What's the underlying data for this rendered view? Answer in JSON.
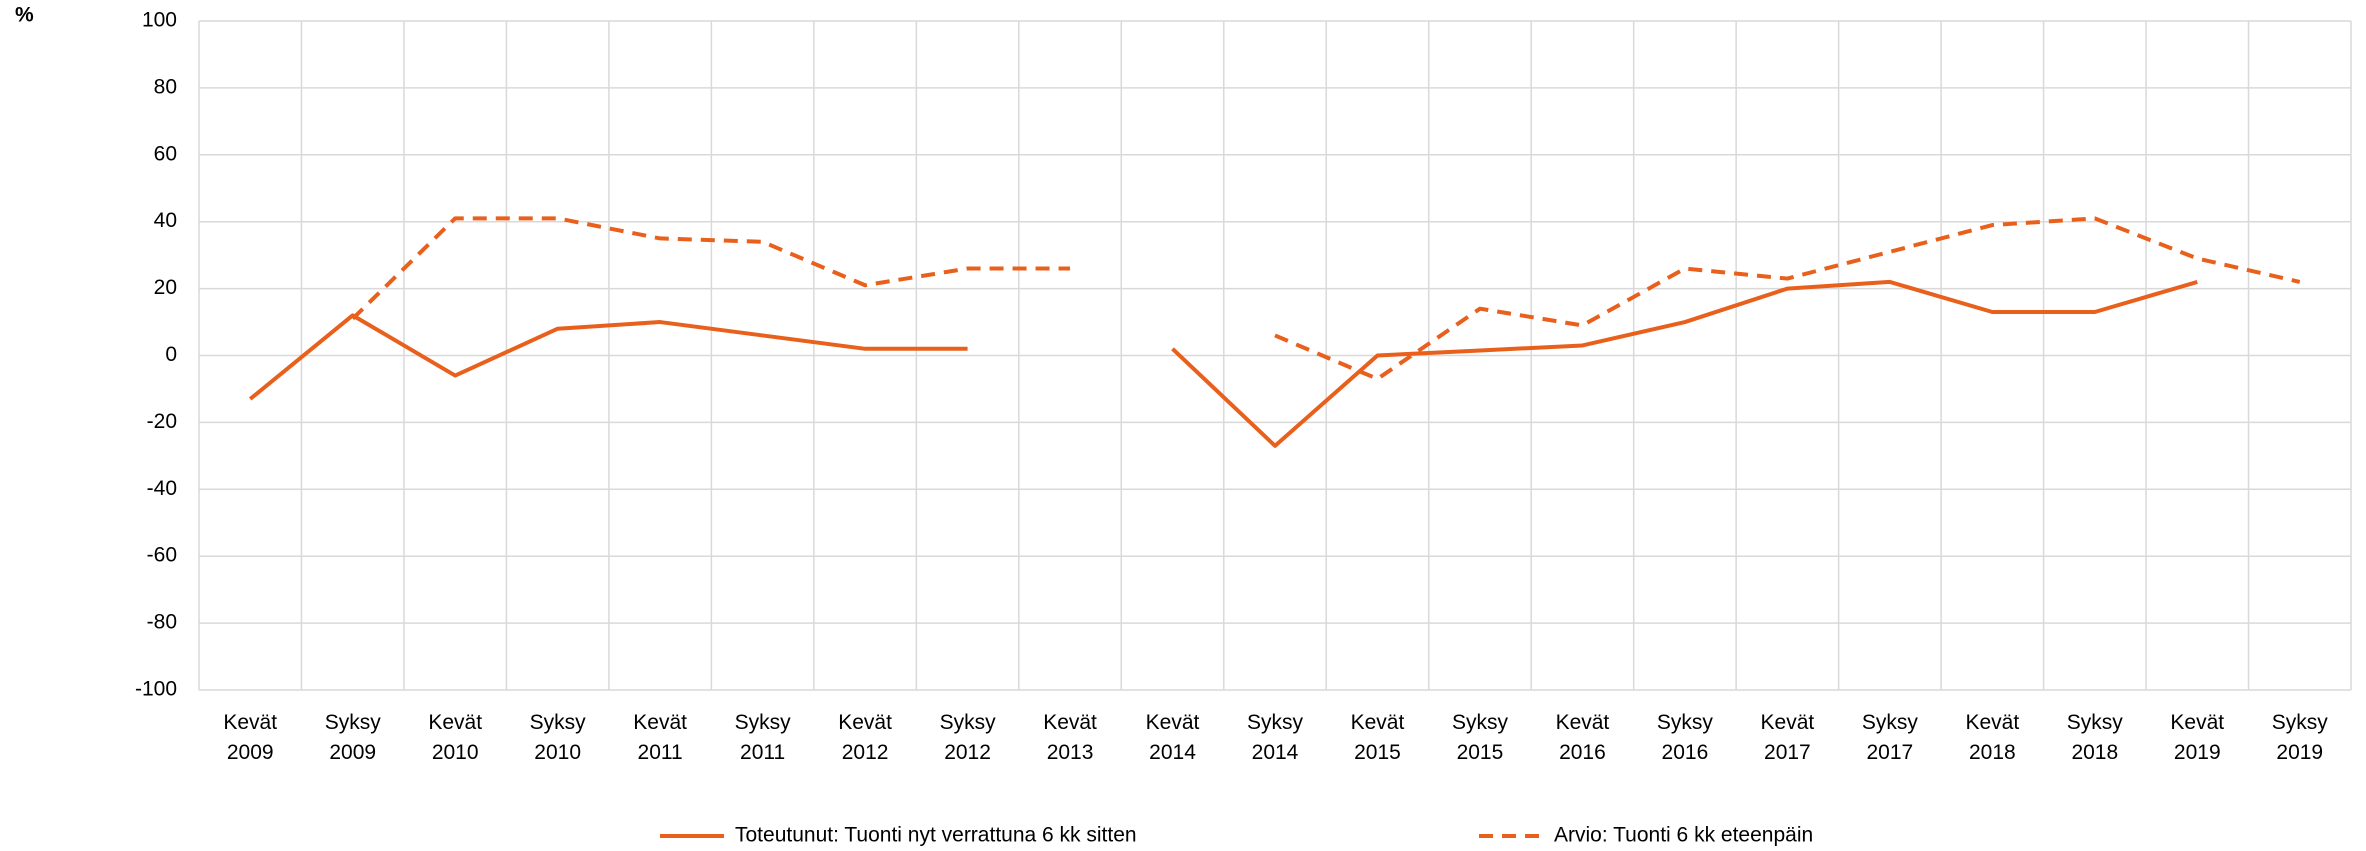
{
  "chart_data": {
    "type": "line",
    "y_label": "%",
    "categories": [
      "Kevät 2009",
      "Syksy 2009",
      "Kevät 2010",
      "Syksy 2010",
      "Kevät 2011",
      "Syksy 2011",
      "Kevät 2012",
      "Syksy 2012",
      "Kevät 2013",
      "Kevät 2014",
      "Syksy 2014",
      "Kevät 2015",
      "Syksy 2015",
      "Kevät 2016",
      "Syksy 2016",
      "Kevät 2017",
      "Syksy 2017",
      "Kevät 2018",
      "Syksy 2018",
      "Kevät 2019",
      "Syksy 2019"
    ],
    "series": [
      {
        "name": "Toteutunut: Tuonti nyt verrattuna 6 kk sitten",
        "color": "#e8601c",
        "dash": false,
        "values": [
          -13,
          12,
          -6,
          8,
          10,
          6,
          2,
          2,
          null,
          2,
          -27,
          0,
          1.5,
          3,
          10,
          20,
          22,
          13,
          13,
          22,
          null
        ]
      },
      {
        "name": "Arvio: Tuonti 6 kk eteenpäin",
        "color": "#e8601c",
        "dash": true,
        "values": [
          null,
          11,
          41,
          41,
          35,
          34,
          21,
          26,
          26,
          null,
          6,
          -7,
          14,
          9,
          26,
          23,
          31,
          39,
          41,
          29,
          22
        ]
      }
    ],
    "ylim": [
      -100,
      100
    ],
    "yticks": [
      -100,
      -80,
      -60,
      -40,
      -20,
      0,
      20,
      40,
      60,
      80,
      100
    ],
    "grid": true,
    "legend": "bottom"
  }
}
